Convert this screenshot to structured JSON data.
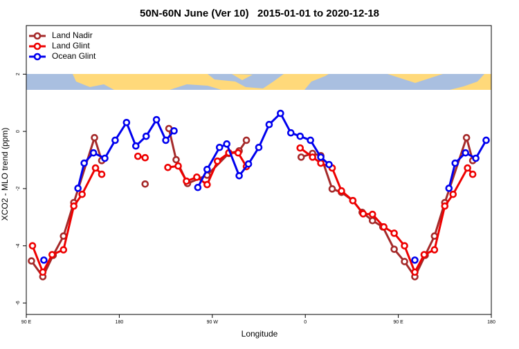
{
  "chart_data": {
    "type": "line",
    "title": "50N-60N June (Ver 10)   2015-01-01 to 2020-12-18",
    "x_label": "Longitude",
    "y_label": "XCO2 - MLO trend (ppm)",
    "xlim": [
      90,
      540
    ],
    "ylim": [
      -6.4,
      3.7
    ],
    "xticks": [
      {
        "value": 90,
        "label": "90 E"
      },
      {
        "value": 180,
        "label": "180"
      },
      {
        "value": 270,
        "label": "90 W"
      },
      {
        "value": 360,
        "label": "0"
      },
      {
        "value": 450,
        "label": "90 E"
      },
      {
        "value": 540,
        "label": "180"
      }
    ],
    "yticks": [
      2,
      0,
      -2,
      -4,
      -6
    ],
    "legend": "top-left",
    "series": [
      {
        "name": "Land Nadir",
        "color": "#a52a2a",
        "x": [
          95,
          106,
          116,
          126,
          136,
          156,
          163,
          null,
          205,
          null,
          228,
          235,
          246,
          265,
          286,
          296,
          303,
          null,
          356,
          367,
          375,
          386,
          395,
          406,
          415,
          425,
          435,
          446,
          456,
          466,
          476,
          485,
          495,
          516,
          522
        ],
        "values": [
          -4.53,
          -5.08,
          -4.33,
          -3.66,
          -2.49,
          -0.22,
          -1.02,
          null,
          -1.84,
          null,
          0.1,
          -0.99,
          -1.82,
          -1.53,
          -0.77,
          -0.68,
          -0.31,
          null,
          -0.9,
          -0.77,
          -0.85,
          -2.01,
          -2.13,
          -2.42,
          -2.83,
          -3.12,
          -3.34,
          -4.12,
          -4.55,
          -5.08,
          -4.33,
          -3.66,
          -2.49,
          -0.22,
          -1.02
        ]
      },
      {
        "name": "Land Glint",
        "color": "#ee0000",
        "x": [
          96,
          106,
          115,
          126,
          136,
          144,
          157,
          163,
          null,
          198,
          205,
          null,
          227,
          237,
          245,
          255,
          265,
          275,
          286,
          295,
          303,
          null,
          355,
          367,
          375,
          386,
          395,
          406,
          416,
          425,
          436,
          446,
          456,
          466,
          475,
          485,
          495,
          503,
          517,
          522
        ],
        "values": [
          -4.0,
          -4.92,
          -4.31,
          -4.14,
          -2.61,
          -2.2,
          -1.28,
          -1.5,
          null,
          -0.87,
          -0.92,
          null,
          -1.26,
          -1.21,
          -1.74,
          -1.6,
          -1.86,
          -1.04,
          -0.75,
          -0.75,
          -1.23,
          null,
          -0.58,
          -0.9,
          -1.11,
          -1.28,
          -2.08,
          -2.42,
          -2.88,
          -2.9,
          -3.34,
          -3.56,
          -4.0,
          -4.92,
          -4.31,
          -4.14,
          -2.61,
          -2.2,
          -1.28,
          -1.5
        ]
      },
      {
        "name": "Ocean Glint",
        "color": "#0000ee",
        "x": [
          107,
          null,
          140,
          146,
          155,
          166,
          176,
          187,
          196,
          206,
          216,
          225,
          233,
          null,
          256,
          265,
          277,
          284,
          296,
          305,
          315,
          325,
          336,
          346,
          355,
          365,
          375,
          383,
          null,
          466,
          null,
          499,
          505,
          515,
          525,
          535
        ],
        "values": [
          -4.5,
          null,
          -1.99,
          -1.11,
          -0.75,
          -0.94,
          -0.31,
          0.31,
          -0.51,
          -0.17,
          0.41,
          -0.31,
          0.02,
          null,
          -1.96,
          -1.33,
          -0.56,
          -0.44,
          -1.55,
          -1.14,
          -0.56,
          0.24,
          0.63,
          -0.05,
          -0.17,
          -0.31,
          -0.9,
          -1.16,
          null,
          -4.5,
          null,
          -1.99,
          -1.11,
          -0.75,
          -0.94,
          -0.31
        ]
      }
    ]
  }
}
